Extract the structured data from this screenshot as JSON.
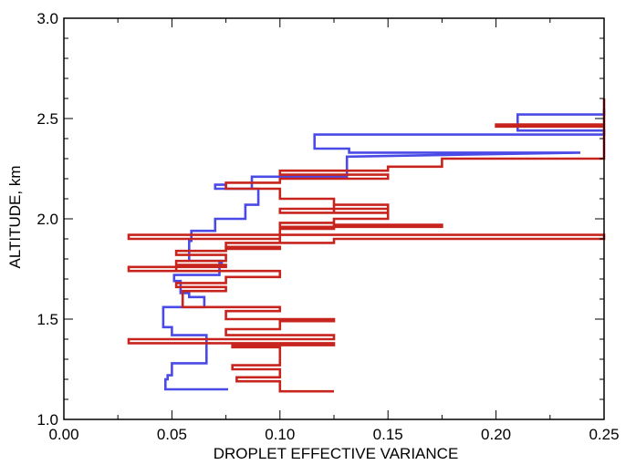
{
  "chart_data": {
    "type": "line",
    "title": "",
    "xlabel": "DROPLET EFFECTIVE VARIANCE",
    "ylabel": "ALTITUDE, km",
    "xlim": [
      0.0,
      0.25
    ],
    "ylim": [
      1.0,
      3.0
    ],
    "x_ticks": [
      0.0,
      0.05,
      0.1,
      0.15,
      0.2,
      0.25
    ],
    "x_tick_labels": [
      "0.00",
      "0.05",
      "0.10",
      "0.15",
      "0.20",
      "0.25"
    ],
    "y_ticks": [
      1.0,
      1.5,
      2.0,
      2.5,
      3.0
    ],
    "y_tick_labels": [
      "1.0",
      "1.5",
      "2.0",
      "2.5",
      "3.0"
    ],
    "grid": false,
    "series": [
      {
        "color": "#4a4ae6",
        "step": true,
        "x": [
          0.076,
          0.047,
          0.047,
          0.048,
          0.048,
          0.05,
          0.05,
          0.066,
          0.066,
          0.05,
          0.05,
          0.046,
          0.046,
          0.065,
          0.065,
          0.058,
          0.058,
          0.054,
          0.054,
          0.051,
          0.051,
          0.072,
          0.072,
          0.073,
          0.073,
          0.058,
          0.058,
          0.059,
          0.059,
          0.07,
          0.07,
          0.084,
          0.084,
          0.09,
          0.09,
          0.07,
          0.07,
          0.075,
          0.075,
          0.087,
          0.087,
          0.131,
          0.131,
          0.239,
          0.132,
          0.132,
          0.116,
          0.116,
          0.25,
          0.25,
          0.21,
          0.21,
          0.25,
          0.25
        ],
        "y": [
          1.15,
          1.15,
          1.2,
          1.2,
          1.22,
          1.22,
          1.28,
          1.28,
          1.42,
          1.42,
          1.46,
          1.46,
          1.56,
          1.56,
          1.61,
          1.61,
          1.63,
          1.63,
          1.69,
          1.69,
          1.72,
          1.72,
          1.78,
          1.78,
          1.79,
          1.79,
          1.89,
          1.89,
          1.94,
          1.94,
          2.0,
          2.0,
          2.07,
          2.07,
          2.15,
          2.15,
          2.17,
          2.17,
          2.15,
          2.15,
          2.21,
          2.21,
          2.31,
          2.33,
          2.33,
          2.35,
          2.35,
          2.42,
          2.42,
          2.44,
          2.44,
          2.52,
          2.52,
          2.55
        ]
      },
      {
        "color": "#c8241e",
        "step": true,
        "x": [
          0.125,
          0.1,
          0.1,
          0.08,
          0.08,
          0.1,
          0.1,
          0.078,
          0.078,
          0.1,
          0.1,
          0.078,
          0.078,
          0.125,
          0.125,
          0.03,
          0.03,
          0.125,
          0.125,
          0.075,
          0.075,
          0.1,
          0.1,
          0.125,
          0.125,
          0.075,
          0.075,
          0.1,
          0.1,
          0.055,
          0.055,
          0.075,
          0.075,
          0.052,
          0.052,
          0.075,
          0.075,
          0.1,
          0.1,
          0.052,
          0.052,
          0.075,
          0.075,
          0.03,
          0.03,
          0.052,
          0.052,
          0.075,
          0.075,
          0.052,
          0.052,
          0.075,
          0.075,
          0.1,
          0.1,
          0.075,
          0.075,
          0.1,
          0.1,
          0.03,
          0.03,
          0.25,
          0.25,
          0.125,
          0.125,
          0.1,
          0.1,
          0.125,
          0.125,
          0.1,
          0.1,
          0.125,
          0.125,
          0.175,
          0.175,
          0.125,
          0.125,
          0.15,
          0.15,
          0.125,
          0.125,
          0.15,
          0.15,
          0.1,
          0.1,
          0.125,
          0.125,
          0.15,
          0.15,
          0.125,
          0.125,
          0.1,
          0.1,
          0.1,
          0.1,
          0.075,
          0.075,
          0.1,
          0.1,
          0.15,
          0.15,
          0.1,
          0.1,
          0.15,
          0.15,
          0.175,
          0.175,
          0.25,
          0.25,
          0.2,
          0.2,
          0.25,
          0.25
        ],
        "y": [
          1.14,
          1.14,
          1.19,
          1.19,
          1.21,
          1.21,
          1.25,
          1.25,
          1.27,
          1.27,
          1.36,
          1.36,
          1.37,
          1.37,
          1.38,
          1.38,
          1.4,
          1.4,
          1.42,
          1.42,
          1.45,
          1.45,
          1.49,
          1.49,
          1.5,
          1.5,
          1.54,
          1.54,
          1.56,
          1.56,
          1.64,
          1.64,
          1.66,
          1.66,
          1.68,
          1.68,
          1.71,
          1.71,
          1.74,
          1.74,
          1.77,
          1.77,
          1.76,
          1.76,
          1.74,
          1.74,
          1.79,
          1.79,
          1.82,
          1.82,
          1.84,
          1.84,
          1.86,
          1.86,
          1.85,
          1.85,
          1.88,
          1.88,
          1.9,
          1.9,
          1.92,
          1.92,
          1.9,
          1.9,
          1.88,
          1.88,
          1.96,
          1.96,
          1.98,
          1.98,
          1.95,
          1.95,
          1.96,
          1.96,
          1.97,
          1.97,
          2.0,
          2.0,
          2.03,
          2.03,
          2.05,
          2.05,
          2.03,
          2.03,
          2.05,
          2.05,
          2.07,
          2.07,
          2.05,
          2.05,
          2.1,
          2.1,
          2.14,
          2.14,
          2.15,
          2.15,
          2.18,
          2.18,
          2.2,
          2.2,
          2.22,
          2.22,
          2.24,
          2.24,
          2.26,
          2.26,
          2.3,
          2.3,
          2.46,
          2.46,
          2.47,
          2.47,
          2.6
        ]
      }
    ]
  }
}
